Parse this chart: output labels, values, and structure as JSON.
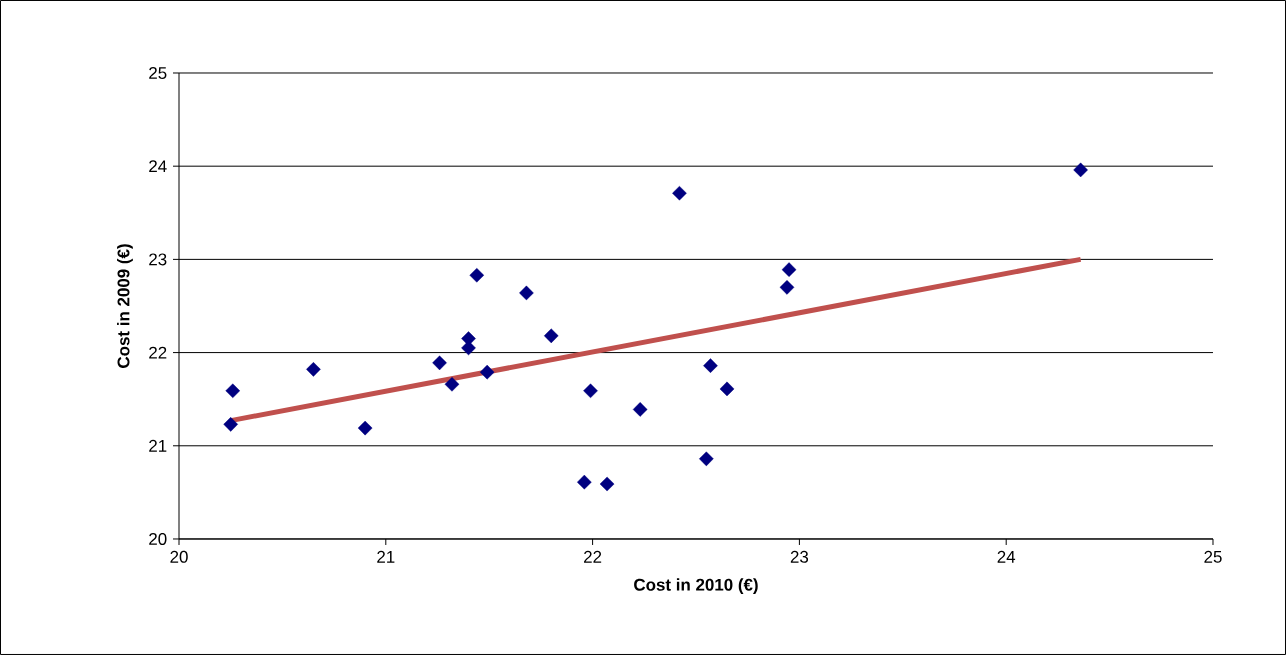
{
  "chart_data": {
    "type": "scatter",
    "xlabel": "Cost in 2010 (€)",
    "ylabel": "Cost in 2009 (€)",
    "xlim": [
      20,
      25
    ],
    "ylim": [
      20,
      25
    ],
    "xticks": [
      20,
      21,
      22,
      23,
      24,
      25
    ],
    "yticks": [
      20,
      21,
      22,
      23,
      24,
      25
    ],
    "grid": "y",
    "series": [
      {
        "marker": "diamond",
        "color": "#000080",
        "x": [
          20.25,
          20.26,
          20.65,
          20.9,
          21.26,
          21.32,
          21.4,
          21.4,
          21.44,
          21.49,
          21.68,
          21.8,
          21.96,
          21.99,
          22.07,
          22.23,
          22.42,
          22.55,
          22.57,
          22.65,
          22.94,
          22.95,
          24.36
        ],
        "values": [
          21.23,
          21.59,
          21.82,
          21.19,
          21.89,
          21.66,
          22.15,
          22.05,
          22.83,
          21.79,
          22.64,
          22.18,
          20.61,
          21.59,
          20.59,
          21.39,
          23.71,
          20.86,
          21.86,
          21.61,
          22.7,
          22.89,
          23.96
        ]
      },
      {
        "type": "line",
        "marker": "none",
        "color": "#c0504d",
        "x": [
          20.25,
          24.36
        ],
        "values": [
          21.27,
          23.0
        ]
      }
    ]
  }
}
